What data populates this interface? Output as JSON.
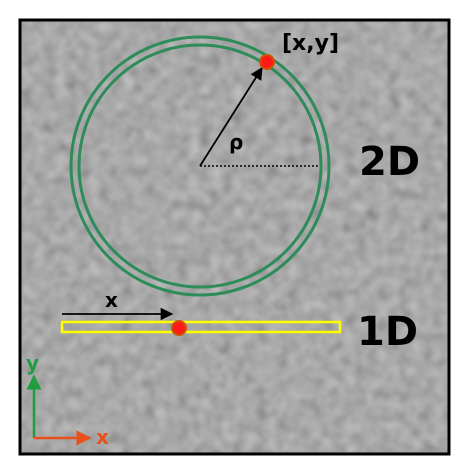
{
  "labels": {
    "point_2d": "[x,y]",
    "radius": "ρ",
    "dim_2d": "2D",
    "dim_1d": "1D",
    "x_1d": "x",
    "axis_y": "y",
    "axis_x": "x"
  },
  "colors": {
    "frame": "#000000",
    "background_texture": "#7d7d7d",
    "ring": "#2e8b5a",
    "strip": "#ffff00",
    "point_fill": "#ff1a1a",
    "point_stroke": "#cc5500",
    "axis_y": "#1f9d40",
    "axis_x": "#e8501a",
    "text": "#000000"
  }
}
